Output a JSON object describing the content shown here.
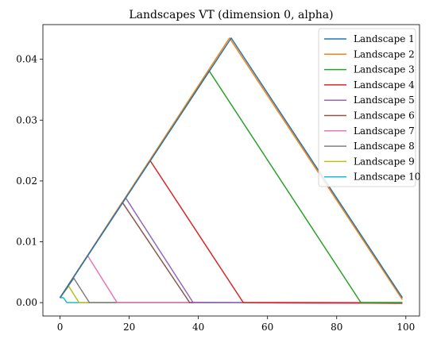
{
  "chart_data": {
    "type": "line",
    "title": "Landscapes VT (dimension 0, alpha)",
    "xlabel": "",
    "ylabel": "",
    "xlim": [
      -4.95,
      103.95
    ],
    "ylim": [
      -0.0022,
      0.0457
    ],
    "xticks": [
      0,
      20,
      40,
      60,
      80,
      100
    ],
    "yticks": [
      0.0,
      0.01,
      0.02,
      0.03,
      0.04
    ],
    "ytick_labels": [
      "0.00",
      "0.01",
      "0.02",
      "0.03",
      "0.04"
    ],
    "legend_position": "top-right",
    "grid": false,
    "series": [
      {
        "name": "Landscape 1",
        "color": "#1f77b4",
        "x": [
          0,
          49.5,
          99
        ],
        "y": [
          0.0008,
          0.0435,
          0.0008
        ]
      },
      {
        "name": "Landscape 2",
        "color": "#ff7f0e",
        "x": [
          0,
          49,
          99
        ],
        "y": [
          0.0008,
          0.0435,
          0.0005
        ]
      },
      {
        "name": "Landscape 3",
        "color": "#2ca02c",
        "x": [
          0,
          43,
          87,
          99
        ],
        "y": [
          0.0008,
          0.0382,
          0.0,
          0.0
        ]
      },
      {
        "name": "Landscape 4",
        "color": "#d62728",
        "x": [
          0,
          26,
          53,
          99
        ],
        "y": [
          0.0008,
          0.0234,
          0.0,
          -0.0001
        ]
      },
      {
        "name": "Landscape 5",
        "color": "#9467bd",
        "x": [
          0,
          19,
          38.5,
          99
        ],
        "y": [
          0.0008,
          0.0172,
          0.0,
          -0.0001
        ]
      },
      {
        "name": "Landscape 6",
        "color": "#8c564b",
        "x": [
          0,
          18,
          37.5,
          99
        ],
        "y": [
          0.0008,
          0.0165,
          0.0,
          -0.0001
        ]
      },
      {
        "name": "Landscape 7",
        "color": "#e377c2",
        "x": [
          0,
          8,
          16.5,
          99
        ],
        "y": [
          0.0008,
          0.0077,
          0.0,
          0.0
        ]
      },
      {
        "name": "Landscape 8",
        "color": "#7f7f7f",
        "x": [
          0,
          4,
          8.5,
          99
        ],
        "y": [
          0.0008,
          0.004,
          0.0,
          0.0
        ]
      },
      {
        "name": "Landscape 9",
        "color": "#bcbd22",
        "x": [
          0,
          2.5,
          5.5,
          99
        ],
        "y": [
          0.0008,
          0.0027,
          0.0,
          0.0
        ]
      },
      {
        "name": "Landscape 10",
        "color": "#17becf",
        "x": [
          0,
          1,
          2,
          99
        ],
        "y": [
          0.0008,
          0.0008,
          0.0,
          0.0
        ]
      }
    ]
  }
}
